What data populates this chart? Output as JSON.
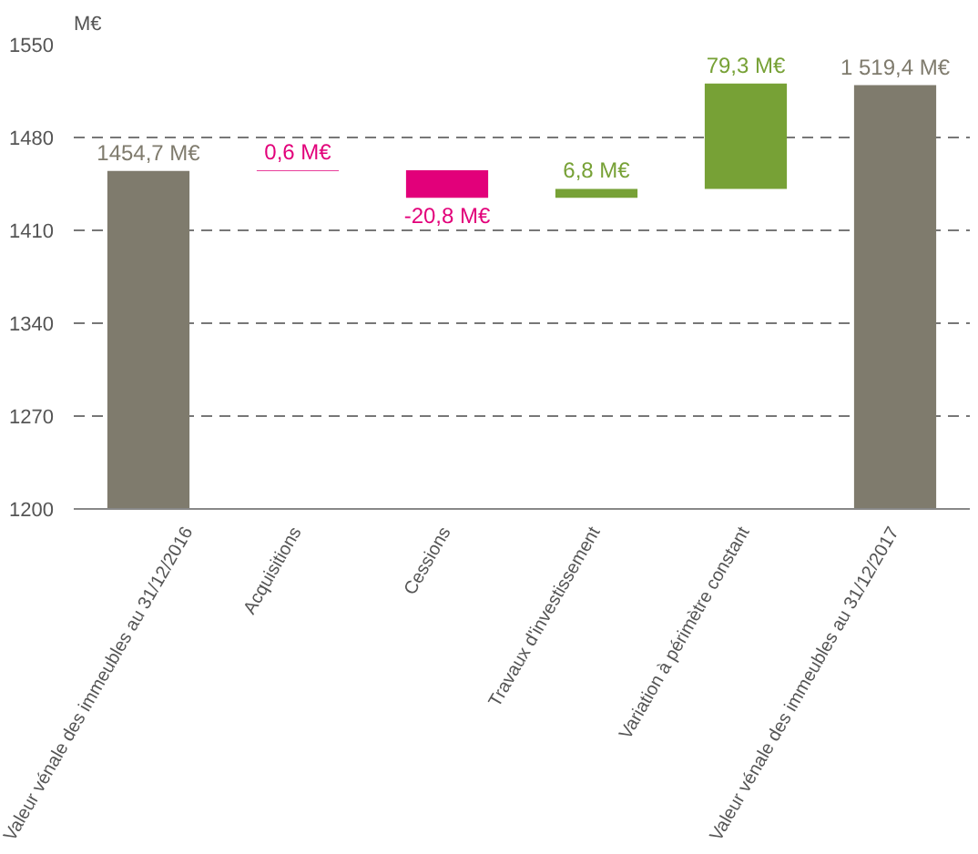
{
  "chart_data": {
    "type": "bar",
    "ylabel": "M€",
    "categories": [
      "Valeur vénale des immeubles au 31/12/2016",
      "Acquisitions",
      "Cessions",
      "Travaux d'investissement",
      "Variation à périmètre constant",
      "Valeur vénale des immeubles au 31/12/2017"
    ],
    "base": [
      1200,
      1454.7,
      1455.3,
      1434.5,
      1441.3,
      1200
    ],
    "values": [
      254.7,
      0.6,
      -20.8,
      6.8,
      79.3,
      319.4
    ],
    "colors": [
      "#7f7b6d",
      "#e2007a",
      "#e2007a",
      "#77a136",
      "#77a136",
      "#7f7b6d"
    ],
    "value_labels": [
      "1454,7 M€",
      "0,6 M€",
      "-20,8 M€",
      "6,8 M€",
      "79,3 M€",
      "1 519,4 M€"
    ],
    "ylim": [
      1200,
      1550
    ],
    "yticks": [
      1200,
      1270,
      1340,
      1410,
      1480,
      1550
    ],
    "grid": "y"
  }
}
